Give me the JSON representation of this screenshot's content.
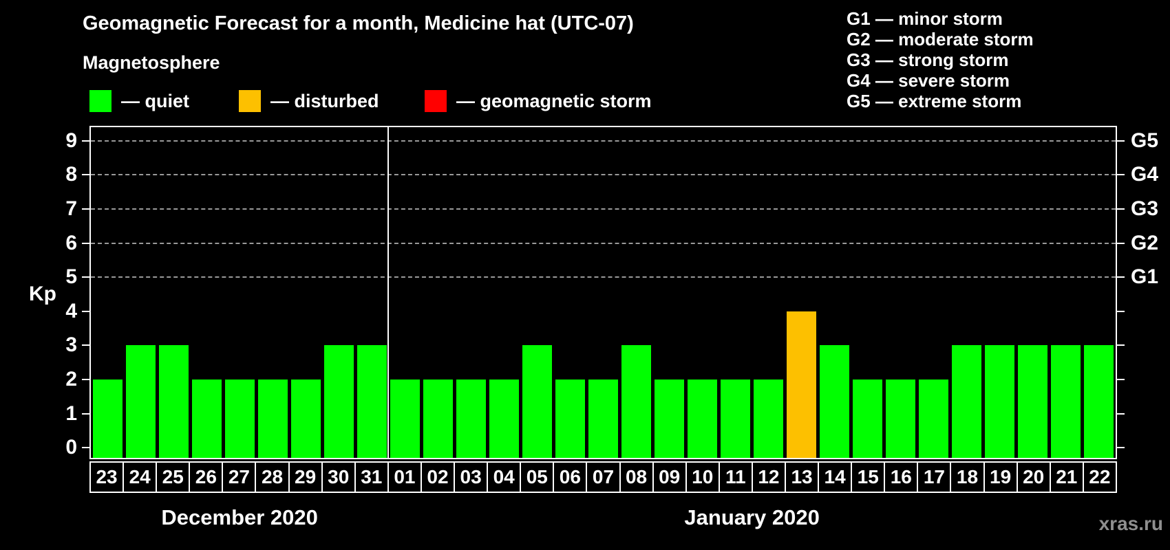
{
  "title": "Geomagnetic Forecast for a month, Medicine hat (UTC-07)",
  "subtitle": "Magnetosphere",
  "legend": {
    "items": [
      {
        "label": "— quiet",
        "status": "quiet",
        "color": "#00ff00"
      },
      {
        "label": "— disturbed",
        "status": "disturbed",
        "color": "#fdc000"
      },
      {
        "label": "— geomagnetic storm",
        "status": "storm",
        "color": "#ff0000"
      }
    ]
  },
  "g_legend": {
    "items": [
      {
        "text": "G1 — minor storm"
      },
      {
        "text": "G2 — moderate storm"
      },
      {
        "text": "G3 — strong storm"
      },
      {
        "text": "G4 — severe storm"
      },
      {
        "text": "G5 — extreme storm"
      }
    ]
  },
  "watermark": "xras.ru",
  "chart_data": {
    "type": "bar",
    "title": "Geomagnetic Forecast for a month, Medicine hat (UTC-07)",
    "ylabel": "Kp",
    "ylim": [
      -0.3,
      9.4
    ],
    "y_ticks": [
      0,
      1,
      2,
      3,
      4,
      5,
      6,
      7,
      8,
      9
    ],
    "right_axis": [
      {
        "kp": 5,
        "label": "G1"
      },
      {
        "kp": 6,
        "label": "G2"
      },
      {
        "kp": 7,
        "label": "G3"
      },
      {
        "kp": 8,
        "label": "G4"
      },
      {
        "kp": 9,
        "label": "G5"
      }
    ],
    "grid": "horizontal dashed lines at Kp 5,6,7,8,9",
    "legend_position": "top-left",
    "colors": {
      "quiet": "#00ff00",
      "disturbed": "#fdc000",
      "storm": "#ff0000"
    },
    "months": [
      {
        "label": "December 2020",
        "days": [
          {
            "date": "23",
            "kp": 2,
            "status": "quiet"
          },
          {
            "date": "24",
            "kp": 3,
            "status": "quiet"
          },
          {
            "date": "25",
            "kp": 3,
            "status": "quiet"
          },
          {
            "date": "26",
            "kp": 2,
            "status": "quiet"
          },
          {
            "date": "27",
            "kp": 2,
            "status": "quiet"
          },
          {
            "date": "28",
            "kp": 2,
            "status": "quiet"
          },
          {
            "date": "29",
            "kp": 2,
            "status": "quiet"
          },
          {
            "date": "30",
            "kp": 3,
            "status": "quiet"
          },
          {
            "date": "31",
            "kp": 3,
            "status": "quiet"
          }
        ]
      },
      {
        "label": "January 2020",
        "days": [
          {
            "date": "01",
            "kp": 2,
            "status": "quiet"
          },
          {
            "date": "02",
            "kp": 2,
            "status": "quiet"
          },
          {
            "date": "03",
            "kp": 2,
            "status": "quiet"
          },
          {
            "date": "04",
            "kp": 2,
            "status": "quiet"
          },
          {
            "date": "05",
            "kp": 3,
            "status": "quiet"
          },
          {
            "date": "06",
            "kp": 2,
            "status": "quiet"
          },
          {
            "date": "07",
            "kp": 2,
            "status": "quiet"
          },
          {
            "date": "08",
            "kp": 3,
            "status": "quiet"
          },
          {
            "date": "09",
            "kp": 2,
            "status": "quiet"
          },
          {
            "date": "10",
            "kp": 2,
            "status": "quiet"
          },
          {
            "date": "11",
            "kp": 2,
            "status": "quiet"
          },
          {
            "date": "12",
            "kp": 2,
            "status": "quiet"
          },
          {
            "date": "13",
            "kp": 4,
            "status": "disturbed"
          },
          {
            "date": "14",
            "kp": 3,
            "status": "quiet"
          },
          {
            "date": "15",
            "kp": 2,
            "status": "quiet"
          },
          {
            "date": "16",
            "kp": 2,
            "status": "quiet"
          },
          {
            "date": "17",
            "kp": 2,
            "status": "quiet"
          },
          {
            "date": "18",
            "kp": 3,
            "status": "quiet"
          },
          {
            "date": "19",
            "kp": 3,
            "status": "quiet"
          },
          {
            "date": "20",
            "kp": 3,
            "status": "quiet"
          },
          {
            "date": "21",
            "kp": 3,
            "status": "quiet"
          },
          {
            "date": "22",
            "kp": 3,
            "status": "quiet"
          }
        ]
      }
    ]
  }
}
